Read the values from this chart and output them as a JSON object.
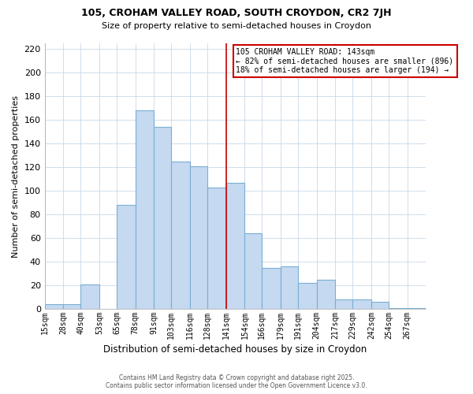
{
  "title": "105, CROHAM VALLEY ROAD, SOUTH CROYDON, CR2 7JH",
  "subtitle": "Size of property relative to semi-detached houses in Croydon",
  "xlabel": "Distribution of semi-detached houses by size in Croydon",
  "ylabel": "Number of semi-detached properties",
  "bin_labels": [
    "15sqm",
    "28sqm",
    "40sqm",
    "53sqm",
    "65sqm",
    "78sqm",
    "91sqm",
    "103sqm",
    "116sqm",
    "128sqm",
    "141sqm",
    "154sqm",
    "166sqm",
    "179sqm",
    "191sqm",
    "204sqm",
    "217sqm",
    "229sqm",
    "242sqm",
    "254sqm",
    "267sqm"
  ],
  "bin_edges": [
    15,
    28,
    40,
    53,
    65,
    78,
    91,
    103,
    116,
    128,
    141,
    154,
    166,
    179,
    191,
    204,
    217,
    229,
    242,
    254,
    267,
    280
  ],
  "bar_heights": [
    4,
    4,
    21,
    0,
    88,
    168,
    154,
    125,
    121,
    103,
    107,
    64,
    35,
    36,
    22,
    25,
    8,
    8,
    6,
    1,
    1
  ],
  "bar_color": "#c5d9f0",
  "bar_edgecolor": "#7aafd4",
  "vline_x": 141,
  "vline_color": "#cc0000",
  "annotation_title": "105 CROHAM VALLEY ROAD: 143sqm",
  "annotation_line1": "← 82% of semi-detached houses are smaller (896)",
  "annotation_line2": "18% of semi-detached houses are larger (194) →",
  "annotation_box_facecolor": "#ffffff",
  "annotation_box_edgecolor": "#cc0000",
  "ylim": [
    0,
    225
  ],
  "yticks": [
    0,
    20,
    40,
    60,
    80,
    100,
    120,
    140,
    160,
    180,
    200,
    220
  ],
  "footer_line1": "Contains HM Land Registry data © Crown copyright and database right 2025.",
  "footer_line2": "Contains public sector information licensed under the Open Government Licence v3.0.",
  "background_color": "#ffffff",
  "grid_color": "#c8d8e8"
}
